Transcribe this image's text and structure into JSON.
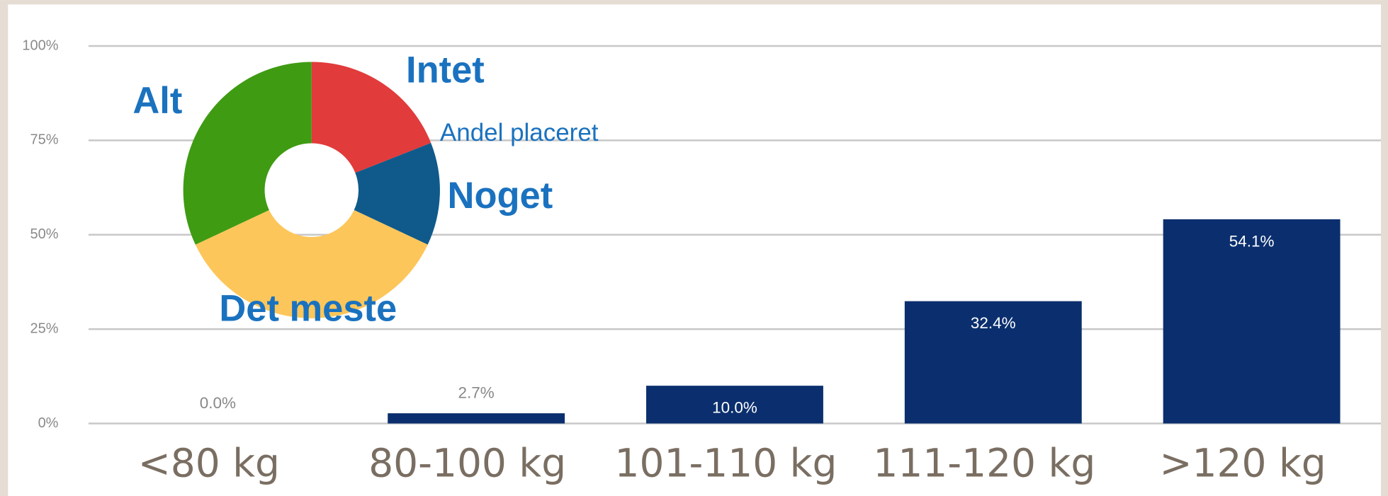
{
  "chart_data": [
    {
      "type": "bar",
      "categories": [
        "<80 kg",
        "80-100 kg",
        "101-110 kg",
        "111-120 kg",
        ">120 kg"
      ],
      "values": [
        0.0,
        2.7,
        10.0,
        32.4,
        54.1
      ],
      "value_labels": [
        "0.0%",
        "2.7%",
        "10.0%",
        "32.4%",
        "54.1%"
      ],
      "color": "#0b2f6e",
      "ylim": [
        0,
        100
      ],
      "yticks": [
        {
          "value": 0,
          "label": "0%"
        },
        {
          "value": 25,
          "label": "25%"
        },
        {
          "value": 50,
          "label": "50%"
        },
        {
          "value": 75,
          "label": "75%"
        },
        {
          "value": 100,
          "label": "100%"
        }
      ],
      "grid": true
    },
    {
      "type": "pie",
      "title": "Andel placeret",
      "categories": [
        "Intet",
        "Noget",
        "Det meste",
        "Alt"
      ],
      "values": [
        19,
        13,
        36,
        32
      ],
      "colors": [
        "#e13b3b",
        "#0f5a8b",
        "#fdc65a",
        "#3f9b12"
      ]
    }
  ]
}
